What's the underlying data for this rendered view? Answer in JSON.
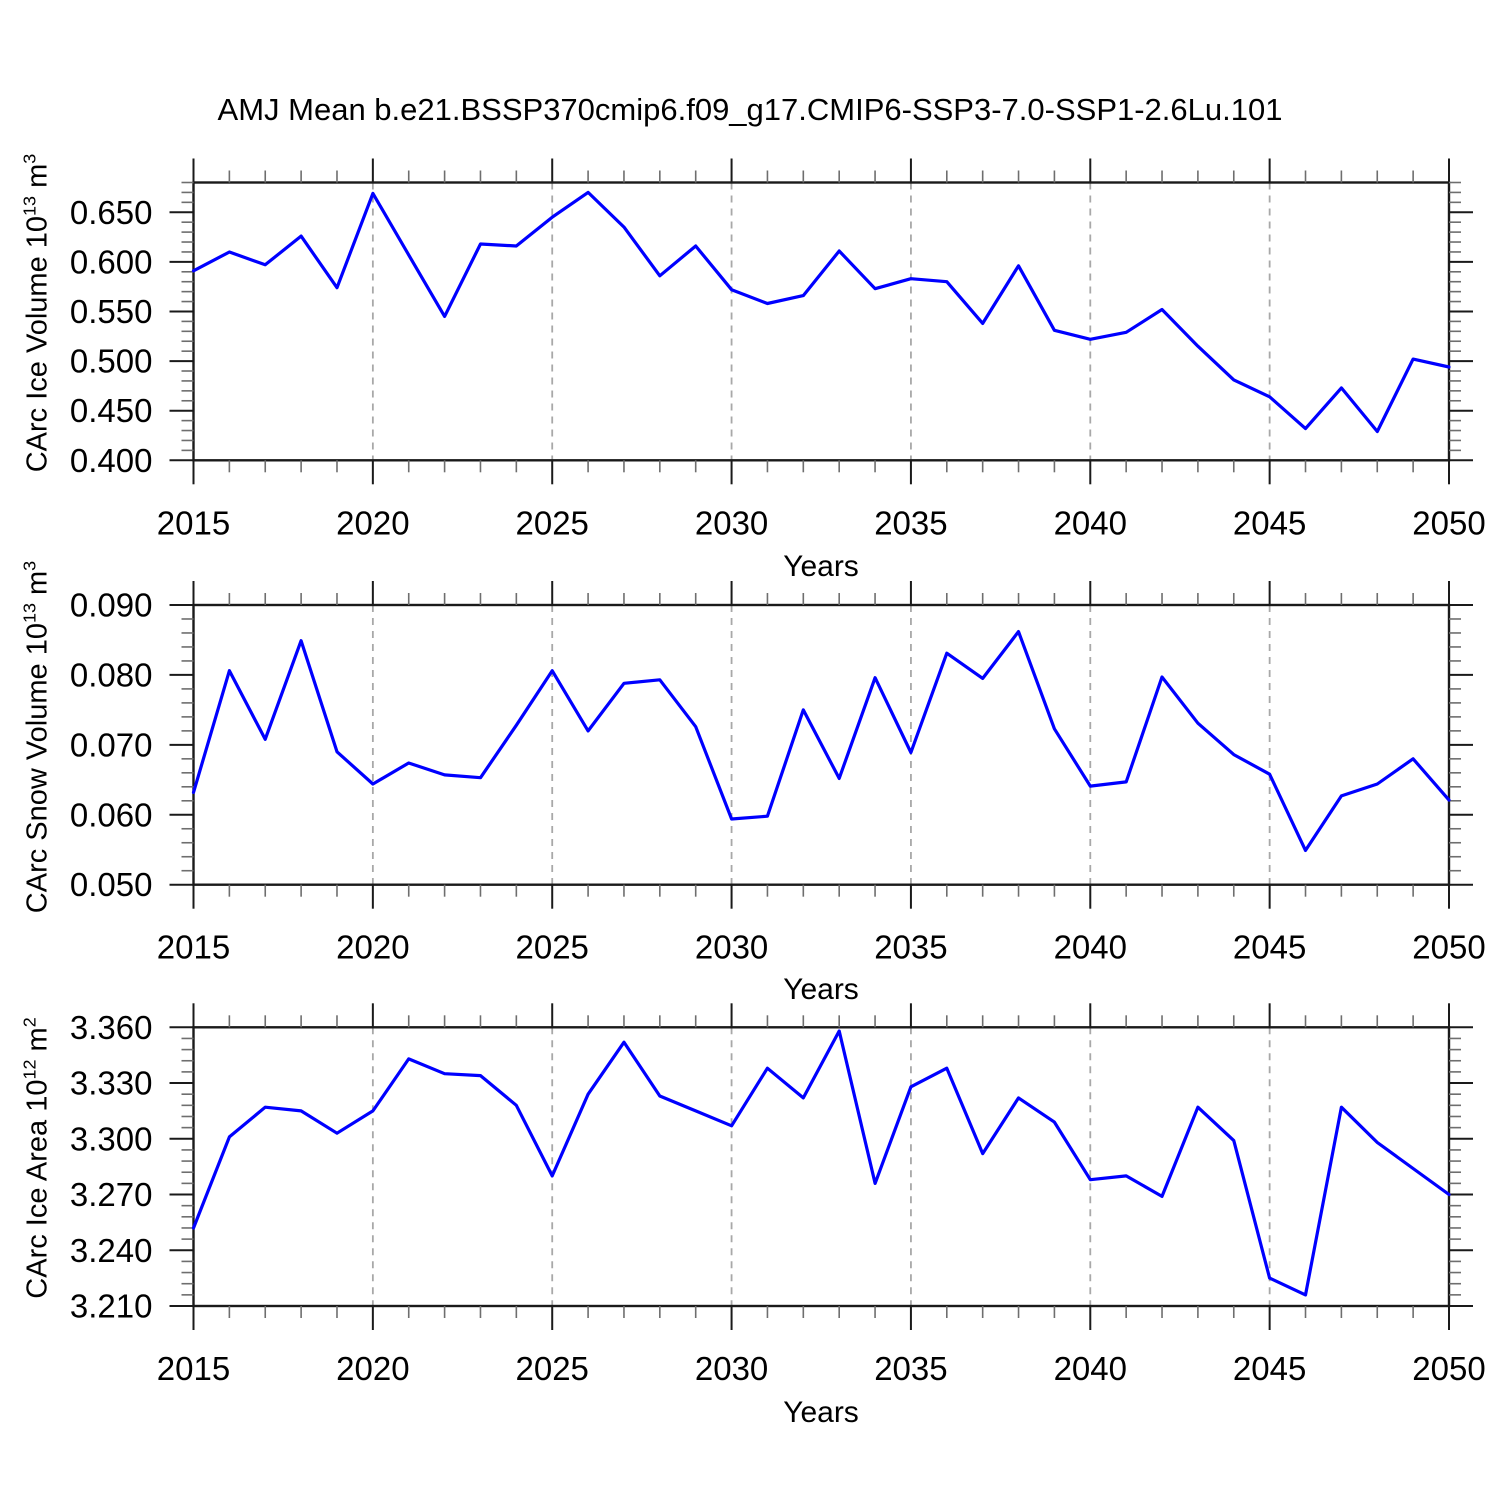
{
  "title": "AMJ Mean b.e21.BSSP370cmip6.f09_g17.CMIP6-SSP3-7.0-SSP1-2.6Lu.101",
  "styles": {
    "line_color": "#0000ff",
    "grid_color": "#a8a8a8",
    "axis_color": "#1a1a1a",
    "background": "#ffffff"
  },
  "chart_data": [
    {
      "type": "line",
      "name": "carc-ice-volume",
      "xlabel": "Years",
      "ylabel": {
        "base": "CArc Ice Volume 10",
        "exp": "13",
        "unit": " m",
        "unit_exp": "3"
      },
      "legend": "none",
      "grid": "vertical-dashed",
      "x": [
        2015,
        2016,
        2017,
        2018,
        2019,
        2020,
        2021,
        2022,
        2023,
        2024,
        2025,
        2026,
        2027,
        2028,
        2029,
        2030,
        2031,
        2032,
        2033,
        2034,
        2035,
        2036,
        2037,
        2038,
        2039,
        2040,
        2041,
        2042,
        2043,
        2044,
        2045,
        2046,
        2047,
        2048,
        2049,
        2050
      ],
      "values": [
        0.591,
        0.61,
        0.597,
        0.626,
        0.574,
        0.669,
        0.607,
        0.545,
        0.618,
        0.616,
        0.645,
        0.67,
        0.635,
        0.586,
        0.616,
        0.572,
        0.558,
        0.566,
        0.611,
        0.573,
        0.583,
        0.58,
        0.538,
        0.596,
        0.531,
        0.522,
        0.529,
        0.552,
        0.515,
        0.481,
        0.464,
        0.432,
        0.473,
        0.429,
        0.502,
        0.494
      ],
      "xlim": [
        2015,
        2050
      ],
      "ylim": [
        0.4,
        0.68
      ],
      "xticks": [
        2015,
        2020,
        2025,
        2030,
        2035,
        2040,
        2045,
        2050
      ],
      "xtick_labels": [
        "2015",
        "2020",
        "2025",
        "2030",
        "2035",
        "2040",
        "2045",
        "2050"
      ],
      "xminor_step": 1,
      "yticks": [
        0.4,
        0.45,
        0.5,
        0.55,
        0.6,
        0.65
      ],
      "ytick_labels": [
        "0.400",
        "0.450",
        "0.500",
        "0.550",
        "0.600",
        "0.650"
      ],
      "yminor_step": 0.01,
      "grid_x": [
        2020,
        2025,
        2030,
        2035,
        2040,
        2045
      ],
      "line_color": "#0000ff"
    },
    {
      "type": "line",
      "name": "carc-snow-volume",
      "xlabel": "Years",
      "ylabel": {
        "base": "CArc Snow Volume 10",
        "exp": "13",
        "unit": " m",
        "unit_exp": "3"
      },
      "legend": "none",
      "grid": "vertical-dashed",
      "x": [
        2015,
        2016,
        2017,
        2018,
        2019,
        2020,
        2021,
        2022,
        2023,
        2024,
        2025,
        2026,
        2027,
        2028,
        2029,
        2030,
        2031,
        2032,
        2033,
        2034,
        2035,
        2036,
        2037,
        2038,
        2039,
        2040,
        2041,
        2042,
        2043,
        2044,
        2045,
        2046,
        2047,
        2048,
        2049,
        2050
      ],
      "values": [
        0.0632,
        0.0806,
        0.0708,
        0.0849,
        0.069,
        0.0644,
        0.0674,
        0.0657,
        0.0653,
        0.0728,
        0.0806,
        0.072,
        0.0788,
        0.0793,
        0.0726,
        0.0594,
        0.0598,
        0.075,
        0.0652,
        0.0796,
        0.0689,
        0.0831,
        0.0795,
        0.0862,
        0.0723,
        0.0641,
        0.0647,
        0.0797,
        0.0731,
        0.0686,
        0.0658,
        0.0549,
        0.0627,
        0.0644,
        0.068,
        0.0621
      ],
      "xlim": [
        2015,
        2050
      ],
      "ylim": [
        0.05,
        0.09
      ],
      "xticks": [
        2015,
        2020,
        2025,
        2030,
        2035,
        2040,
        2045,
        2050
      ],
      "xtick_labels": [
        "2015",
        "2020",
        "2025",
        "2030",
        "2035",
        "2040",
        "2045",
        "2050"
      ],
      "xminor_step": 1,
      "yticks": [
        0.05,
        0.06,
        0.07,
        0.08,
        0.09
      ],
      "ytick_labels": [
        "0.050",
        "0.060",
        "0.070",
        "0.080",
        "0.090"
      ],
      "yminor_step": 0.002,
      "grid_x": [
        2020,
        2025,
        2030,
        2035,
        2040,
        2045
      ],
      "line_color": "#0000ff"
    },
    {
      "type": "line",
      "name": "carc-ice-area",
      "xlabel": "Years",
      "ylabel": {
        "base": "CArc Ice Area 10",
        "exp": "12",
        "unit": " m",
        "unit_exp": "2"
      },
      "legend": "none",
      "grid": "vertical-dashed",
      "x": [
        2015,
        2016,
        2017,
        2018,
        2019,
        2020,
        2021,
        2022,
        2023,
        2024,
        2025,
        2026,
        2027,
        2028,
        2029,
        2030,
        2031,
        2032,
        2033,
        2034,
        2035,
        2036,
        2037,
        2038,
        2039,
        2040,
        2041,
        2042,
        2043,
        2044,
        2045,
        2046,
        2047,
        2048,
        2049,
        2050
      ],
      "values": [
        3.252,
        3.301,
        3.317,
        3.315,
        3.303,
        3.315,
        3.343,
        3.335,
        3.334,
        3.318,
        3.28,
        3.324,
        3.352,
        3.323,
        3.315,
        3.307,
        3.338,
        3.322,
        3.358,
        3.276,
        3.328,
        3.338,
        3.292,
        3.322,
        3.309,
        3.278,
        3.28,
        3.269,
        3.317,
        3.299,
        3.225,
        3.216,
        3.317,
        3.298,
        3.284,
        3.27
      ],
      "xlim": [
        2015,
        2050
      ],
      "ylim": [
        3.21,
        3.36
      ],
      "xticks": [
        2015,
        2020,
        2025,
        2030,
        2035,
        2040,
        2045,
        2050
      ],
      "xtick_labels": [
        "2015",
        "2020",
        "2025",
        "2030",
        "2035",
        "2040",
        "2045",
        "2050"
      ],
      "xminor_step": 1,
      "yticks": [
        3.21,
        3.24,
        3.27,
        3.3,
        3.33,
        3.36
      ],
      "ytick_labels": [
        "3.210",
        "3.240",
        "3.270",
        "3.300",
        "3.330",
        "3.360"
      ],
      "yminor_step": 0.006,
      "grid_x": [
        2020,
        2025,
        2030,
        2035,
        2040,
        2045
      ],
      "line_color": "#0000ff"
    }
  ]
}
